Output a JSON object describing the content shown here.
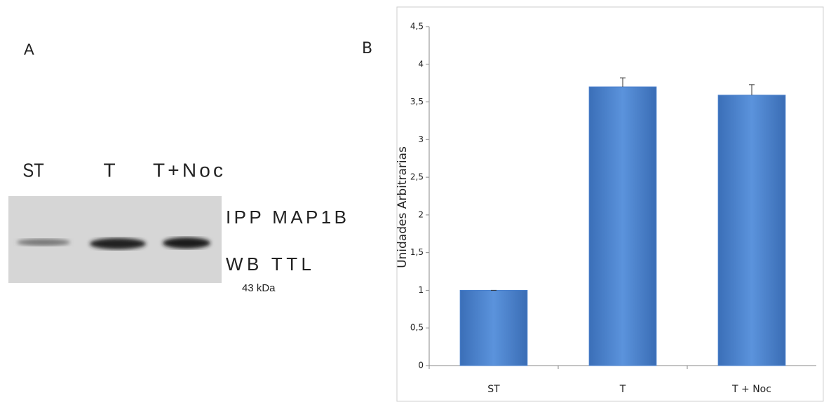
{
  "panel_a": {
    "label": "A",
    "lanes": [
      "ST",
      "T",
      "T+Noc"
    ],
    "annotations": [
      "IPP MAP1B",
      "WB TTL",
      "43 kDa"
    ]
  },
  "chart_data": {
    "type": "bar",
    "panel_label": "B",
    "ylabel": "Unidades Arbitrarias",
    "categories": [
      "ST",
      "T",
      "T + Noc"
    ],
    "values": [
      1.0,
      3.7,
      3.59
    ],
    "errors": [
      0.0,
      0.12,
      0.14
    ],
    "color": "#4a80cc",
    "ylim": [
      0,
      4.5
    ],
    "yticks": [
      0,
      {
        "value": 0.5,
        "label": "0,5"
      },
      1,
      {
        "value": 1.5,
        "label": "1,5"
      },
      2,
      {
        "value": 2.5,
        "label": "2,5"
      },
      3,
      {
        "value": 3.5,
        "label": "3,5"
      },
      4,
      {
        "value": 4.5,
        "label": "4,5"
      }
    ],
    "grid": false
  }
}
